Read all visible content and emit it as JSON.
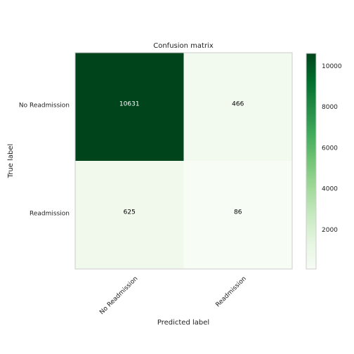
{
  "chart_data": {
    "type": "heatmap",
    "title": "Confusion matrix",
    "xlabel": "Predicted label",
    "ylabel": "True label",
    "x_categories": [
      "No Readmission",
      "Readmission"
    ],
    "y_categories": [
      "No Readmission",
      "Readmission"
    ],
    "values": [
      [
        10631,
        466
      ],
      [
        625,
        86
      ]
    ],
    "colormap": "Greens",
    "colorbar": {
      "range": [
        86,
        10631
      ],
      "ticks": [
        2000,
        4000,
        6000,
        8000,
        10000
      ],
      "tick_labels": [
        "2000",
        "4000",
        "6000",
        "8000",
        "10000"
      ]
    },
    "cell_text_colors": [
      [
        "#ffffff",
        "#000000"
      ],
      [
        "#000000",
        "#000000"
      ]
    ],
    "grid": false
  }
}
